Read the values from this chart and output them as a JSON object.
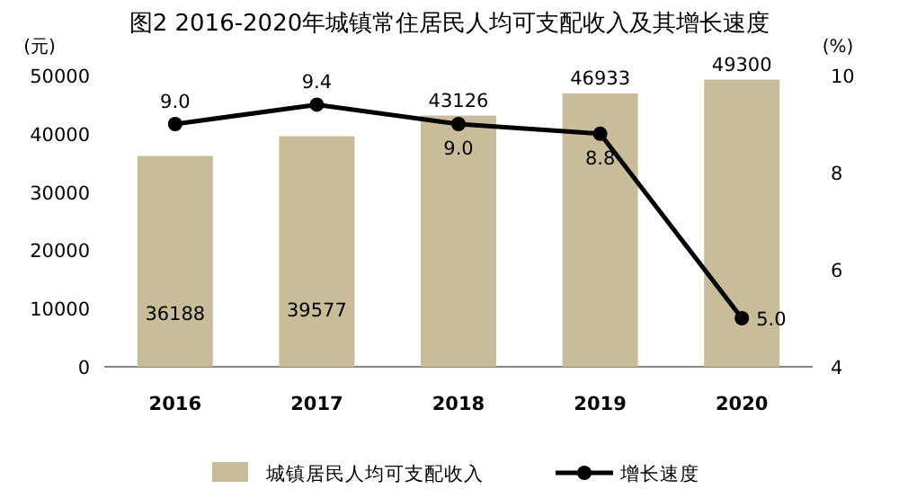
{
  "chart_data": {
    "type": "bar",
    "title": "图2 2016-2020年城镇常住居民人均可支配收入及其增长速度",
    "ylabel": "(元)",
    "y2label": "(%)",
    "categories": [
      "2016",
      "2017",
      "2018",
      "2019",
      "2020"
    ],
    "series": [
      {
        "name": "城镇居民人均可支配收入",
        "color": "#c8bd98",
        "values": [
          36188,
          39577,
          43126,
          46933,
          49300
        ],
        "value_labels": [
          "36188",
          "39577",
          "43126",
          "46933",
          "49300"
        ]
      },
      {
        "name": "增长速度",
        "type": "line",
        "axis": "y2",
        "color": "#000000",
        "marker": "circle",
        "values": [
          9.0,
          9.4,
          9.0,
          8.8,
          5.0
        ],
        "value_labels": [
          "9.0",
          "9.4",
          "9.0",
          "8.8",
          "5.0"
        ]
      }
    ],
    "ylim": [
      0,
      50000
    ],
    "yticks": [
      0,
      10000,
      20000,
      30000,
      40000,
      50000
    ],
    "y2lim": [
      4,
      10
    ],
    "y2ticks": [
      4,
      6,
      8,
      10
    ],
    "grid": false,
    "legend": "bottom"
  }
}
